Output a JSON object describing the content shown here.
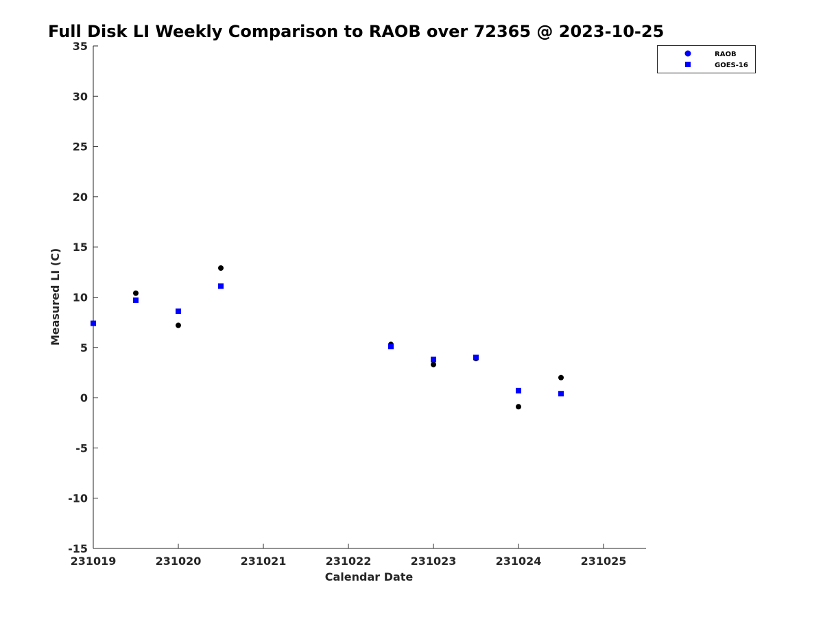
{
  "chart_data": {
    "type": "scatter",
    "title": "Full Disk LI Weekly Comparison to RAOB over 72365 @ 2023-10-25",
    "xlabel": "Calendar Date",
    "ylabel": "Measured LI (C)",
    "xlim": [
      "2023-10-19",
      "2023-10-25 12:00"
    ],
    "ylim": [
      -15,
      35
    ],
    "x_ticks": [
      {
        "x": "2023-10-19",
        "label": "231019"
      },
      {
        "x": "2023-10-20",
        "label": "231020"
      },
      {
        "x": "2023-10-21",
        "label": "231021"
      },
      {
        "x": "2023-10-22",
        "label": "231022"
      },
      {
        "x": "2023-10-23",
        "label": "231023"
      },
      {
        "x": "2023-10-24",
        "label": "231024"
      },
      {
        "x": "2023-10-25",
        "label": "231025"
      }
    ],
    "y_ticks": [
      35,
      30,
      25,
      20,
      15,
      10,
      5,
      0,
      -5,
      -10,
      -15
    ],
    "grid": false,
    "legend_position": "top-right",
    "series": [
      {
        "name": "RAOB",
        "marker": "circle",
        "color": "#000000",
        "legend_color": "#0000ff",
        "points": [
          {
            "x": "2023-10-19 00:00",
            "y": 7.4
          },
          {
            "x": "2023-10-19 12:00",
            "y": 10.4
          },
          {
            "x": "2023-10-20 00:00",
            "y": 7.2
          },
          {
            "x": "2023-10-20 12:00",
            "y": 12.9
          },
          {
            "x": "2023-10-22 12:00",
            "y": 5.3
          },
          {
            "x": "2023-10-23 00:00",
            "y": 3.3
          },
          {
            "x": "2023-10-23 12:00",
            "y": 3.9
          },
          {
            "x": "2023-10-24 00:00",
            "y": -0.9
          },
          {
            "x": "2023-10-24 12:00",
            "y": 2.0
          }
        ]
      },
      {
        "name": "GOES-16",
        "marker": "square",
        "color": "#0000ff",
        "legend_color": "#0000ff",
        "points": [
          {
            "x": "2023-10-19 00:00",
            "y": 7.4
          },
          {
            "x": "2023-10-19 12:00",
            "y": 9.7
          },
          {
            "x": "2023-10-20 00:00",
            "y": 8.6
          },
          {
            "x": "2023-10-20 12:00",
            "y": 11.1
          },
          {
            "x": "2023-10-22 12:00",
            "y": 5.1
          },
          {
            "x": "2023-10-23 00:00",
            "y": 3.8
          },
          {
            "x": "2023-10-23 12:00",
            "y": 4.0
          },
          {
            "x": "2023-10-24 00:00",
            "y": 0.7
          },
          {
            "x": "2023-10-24 12:00",
            "y": 0.4
          }
        ]
      }
    ]
  }
}
